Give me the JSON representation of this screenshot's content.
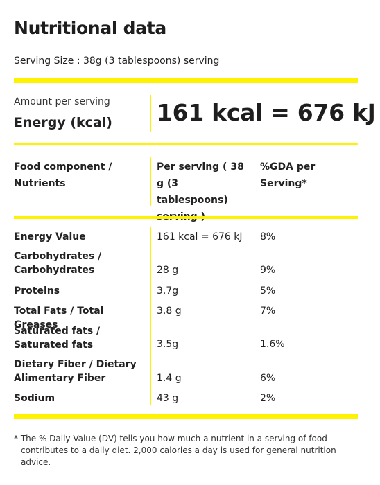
{
  "title": "Nutritional data",
  "serving_size": "Serving Size : 38g (3 tablespoons) serving",
  "amount_per_serving": "Amount per serving",
  "energy_label": "Energy (kcal)",
  "energy_value": "161 kcal = 676 kJ",
  "table": {
    "headers": [
      "Food component / Nutrients",
      "Per serving ( 38 g (3 tablespoons) serving )",
      "%GDA per Serving*"
    ],
    "rows": [
      {
        "name": "Energy Value",
        "value": "161 kcal = 676 kJ",
        "gda": "8%"
      },
      {
        "name": "Carbohydrates / Carbohydrates",
        "value": "28 g",
        "gda": "9%"
      },
      {
        "name": "Proteins",
        "value": "3.7g",
        "gda": "5%"
      },
      {
        "name": "Total Fats / Total Greases",
        "value": "3.8 g",
        "gda": "7%"
      },
      {
        "name": "Saturated fats / Saturated fats",
        "value": "3.5g",
        "gda": "1.6%"
      },
      {
        "name": "Dietary Fiber / Dietary Alimentary Fiber",
        "value": "1.4 g",
        "gda": "6%"
      },
      {
        "name": "Sodium",
        "value": "43 g",
        "gda": "2%"
      }
    ]
  },
  "footnote": "* The % Daily Value (DV) tells you how much a nutrient in a serving of food contributes to a daily diet. 2,000 calories a day is used for general nutrition advice.",
  "colors": {
    "accent": "#fff200"
  }
}
